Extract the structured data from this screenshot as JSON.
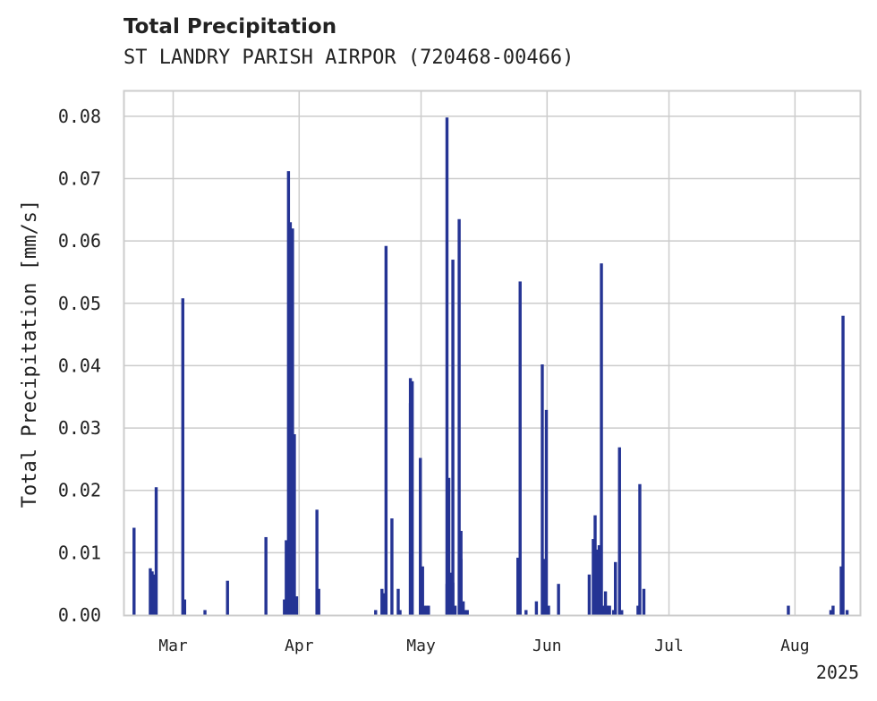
{
  "chart_data": {
    "type": "bar",
    "title": "Total Precipitation",
    "subtitle": "ST LANDRY PARISH AIRPOR (720468-00466)",
    "ylabel": "Total Precipitation [mm/s]",
    "xlabel": "",
    "ylim": [
      0,
      0.084
    ],
    "yticks": [
      "0.00",
      "0.01",
      "0.02",
      "0.03",
      "0.04",
      "0.05",
      "0.06",
      "0.07",
      "0.08"
    ],
    "xlim": [
      "2025-02-17",
      "2025-08-17"
    ],
    "xticks": [
      {
        "label": "Mar",
        "date": "2025-03-01"
      },
      {
        "label": "Apr",
        "date": "2025-04-01"
      },
      {
        "label": "May",
        "date": "2025-05-01"
      },
      {
        "label": "Jun",
        "date": "2025-06-01"
      },
      {
        "label": "Jul",
        "date": "2025-07-01"
      },
      {
        "label": "Aug",
        "date": "2025-08-01"
      }
    ],
    "year_label": "2025",
    "grid": true,
    "bar_color": "#253494",
    "series": [
      {
        "x": [
          "2025-02-19",
          "2025-02-23",
          "2025-02-23",
          "2025-02-24",
          "2025-02-24",
          "2025-03-03",
          "2025-03-03",
          "2025-03-08",
          "2025-03-14",
          "2025-03-23",
          "2025-03-28",
          "2025-03-28",
          "2025-03-29",
          "2025-03-29",
          "2025-03-30",
          "2025-03-30",
          "2025-03-31",
          "2025-04-05",
          "2025-04-05",
          "2025-04-19",
          "2025-04-21",
          "2025-04-21",
          "2025-04-22",
          "2025-04-23",
          "2025-04-25",
          "2025-04-25",
          "2025-04-28",
          "2025-04-28",
          "2025-04-28",
          "2025-04-30",
          "2025-05-01",
          "2025-05-01",
          "2025-05-02",
          "2025-05-02",
          "2025-05-07",
          "2025-05-07",
          "2025-05-07",
          "2025-05-08",
          "2025-05-08",
          "2025-05-08",
          "2025-05-09",
          "2025-05-10",
          "2025-05-10",
          "2025-05-10",
          "2025-05-11",
          "2025-05-11",
          "2025-05-12",
          "2025-05-24",
          "2025-05-25",
          "2025-05-26",
          "2025-05-29",
          "2025-05-30",
          "2025-05-31",
          "2025-05-31",
          "2025-06-01",
          "2025-06-03",
          "2025-06-11",
          "2025-06-12",
          "2025-06-12",
          "2025-06-12",
          "2025-06-13",
          "2025-06-13",
          "2025-06-13",
          "2025-06-14",
          "2025-06-14",
          "2025-06-15",
          "2025-06-15",
          "2025-06-15",
          "2025-06-16",
          "2025-06-17",
          "2025-06-17",
          "2025-06-18",
          "2025-06-19",
          "2025-06-23",
          "2025-06-23",
          "2025-06-24",
          "2025-07-30",
          "2025-08-09",
          "2025-08-10",
          "2025-08-12",
          "2025-08-12",
          "2025-08-13"
        ],
        "values": [
          0.014,
          0.007,
          0.0075,
          0.0205,
          0.0065,
          0.0025,
          0.0508,
          0.0008,
          0.0055,
          0.0125,
          0.0025,
          0.012,
          0.0712,
          0.063,
          0.062,
          0.029,
          0.003,
          0.0042,
          0.0169,
          0.0008,
          0.0042,
          0.0035,
          0.0592,
          0.0155,
          0.0042,
          0.0008,
          0.038,
          0.0375,
          0.034,
          0.0252,
          0.0078,
          0.0015,
          0.0015,
          0.0015,
          0.005,
          0.022,
          0.0798,
          0.057,
          0.0068,
          0.0052,
          0.0015,
          0.009,
          0.0635,
          0.0135,
          0.0022,
          0.0008,
          0.0008,
          0.0092,
          0.0535,
          0.0008,
          0.0022,
          0.0402,
          0.009,
          0.0329,
          0.0015,
          0.005,
          0.0065,
          0.0015,
          0.0122,
          0.016,
          0.0105,
          0.0112,
          0.0095,
          0.0015,
          0.0564,
          0.0015,
          0.0038,
          0.0015,
          0.0015,
          0.0085,
          0.0008,
          0.0269,
          0.0008,
          0.021,
          0.0015,
          0.0042,
          0.0015,
          0.0008,
          0.0015,
          0.048,
          0.0078,
          0.0008
        ]
      }
    ]
  }
}
